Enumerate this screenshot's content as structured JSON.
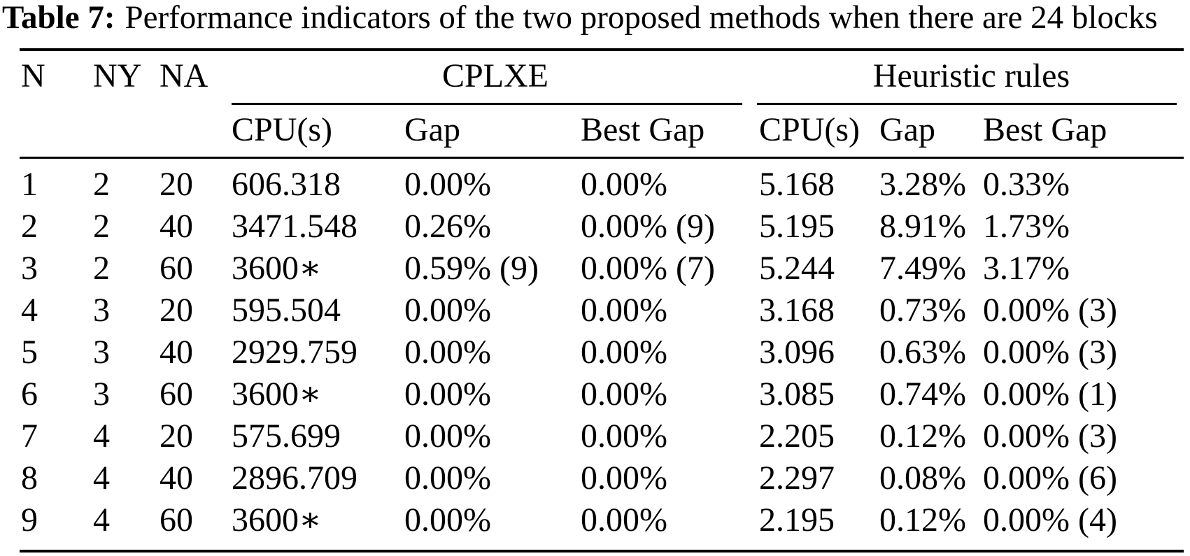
{
  "caption": {
    "label": "Table 7:",
    "text": "Performance indicators of the two proposed methods when there are 24 blocks"
  },
  "table": {
    "id_headers": [
      "N",
      "NY",
      "NA"
    ],
    "groups": [
      "CPLXE",
      "Heuristic rules"
    ],
    "sub_headers": [
      "CPU(s)",
      "Gap",
      "Best Gap",
      "CPU(s)",
      "Gap",
      "Best Gap"
    ],
    "rows": [
      [
        "1",
        "2",
        "20",
        "606.318",
        "0.00%",
        "0.00%",
        "5.168",
        "3.28%",
        "0.33%"
      ],
      [
        "2",
        "2",
        "40",
        "3471.548",
        "0.26%",
        "0.00% (9)",
        "5.195",
        "8.91%",
        "1.73%"
      ],
      [
        "3",
        "2",
        "60",
        "3600∗",
        "0.59% (9)",
        "0.00% (7)",
        "5.244",
        "7.49%",
        "3.17%"
      ],
      [
        "4",
        "3",
        "20",
        "595.504",
        "0.00%",
        "0.00%",
        "3.168",
        "0.73%",
        "0.00% (3)"
      ],
      [
        "5",
        "3",
        "40",
        "2929.759",
        "0.00%",
        "0.00%",
        "3.096",
        "0.63%",
        "0.00% (3)"
      ],
      [
        "6",
        "3",
        "60",
        "3600∗",
        "0.00%",
        "0.00%",
        "3.085",
        "0.74%",
        "0.00% (1)"
      ],
      [
        "7",
        "4",
        "20",
        "575.699",
        "0.00%",
        "0.00%",
        "2.205",
        "0.12%",
        "0.00% (3)"
      ],
      [
        "8",
        "4",
        "40",
        "2896.709",
        "0.00%",
        "0.00%",
        "2.297",
        "0.08%",
        "0.00% (6)"
      ],
      [
        "9",
        "4",
        "60",
        "3600∗",
        "0.00%",
        "0.00%",
        "2.195",
        "0.12%",
        "0.00% (4)"
      ]
    ],
    "colors": {
      "text": "#000000",
      "background": "#ffffff",
      "rule": "#000000"
    }
  }
}
